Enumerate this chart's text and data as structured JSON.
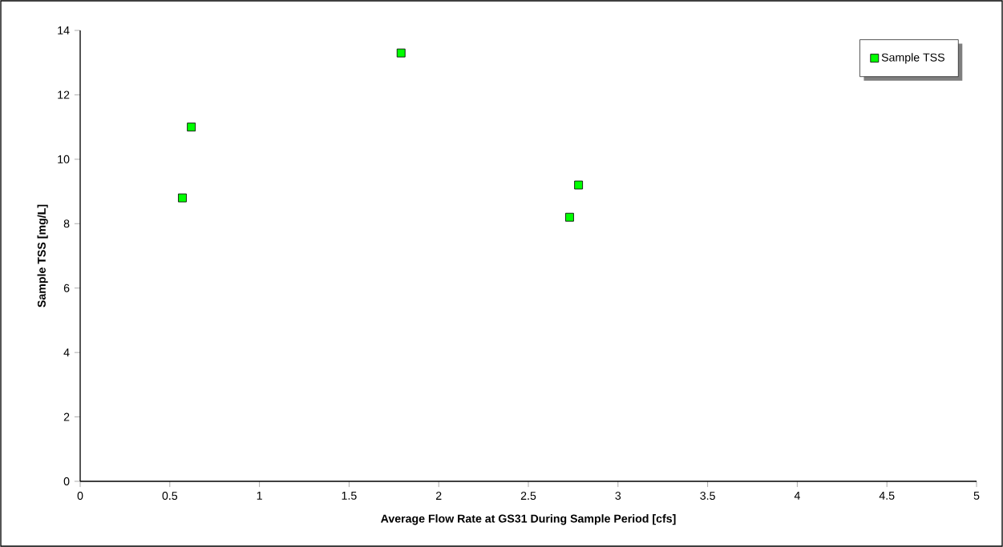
{
  "chart_data": {
    "type": "scatter",
    "xlabel": "Average Flow Rate at GS31 During Sample Period [cfs]",
    "ylabel": "Sample TSS [mg/L]",
    "x": [
      0.57,
      0.62,
      1.79,
      2.73,
      2.78
    ],
    "series": [
      {
        "name": "Sample TSS",
        "color": "#00ff00",
        "values": [
          8.8,
          11.0,
          13.3,
          8.2,
          9.2
        ]
      }
    ],
    "xlim": [
      0,
      5
    ],
    "ylim": [
      0,
      14
    ],
    "xticks": [
      0,
      0.5,
      1,
      1.5,
      2,
      2.5,
      3,
      3.5,
      4,
      4.5,
      5
    ],
    "yticks": [
      0,
      2,
      4,
      6,
      8,
      10,
      12,
      14
    ],
    "grid": false,
    "legend": "top right",
    "marker": "square"
  }
}
